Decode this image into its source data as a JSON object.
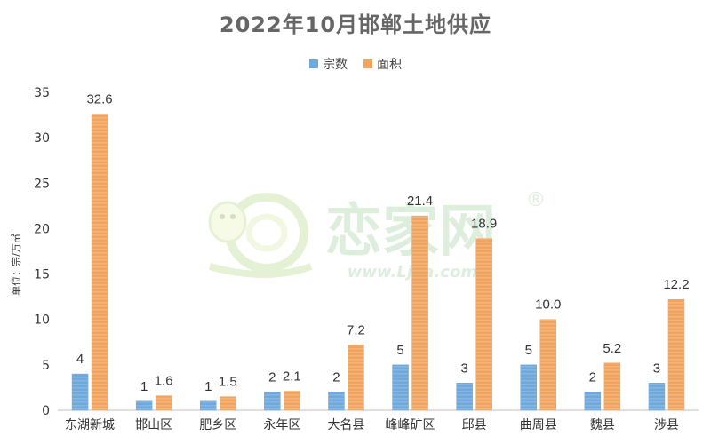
{
  "title": "2022年10月邯郸土地供应",
  "unit_label": "单位：宗/万㎡",
  "watermark": {
    "brand": "恋家网",
    "url": "www.Lj ja.com",
    "registered": "®"
  },
  "colors": {
    "series1": "#6fa8dc",
    "series2": "#f2a35e",
    "axis": "#bfbfbf"
  },
  "chart_data": {
    "type": "bar",
    "categories": [
      "东湖新城",
      "邯山区",
      "肥乡区",
      "永年区",
      "大名县",
      "峰峰矿区",
      "邱县",
      "曲周县",
      "魏县",
      "涉县"
    ],
    "series": [
      {
        "name": "宗数",
        "values": [
          4,
          1,
          1,
          2,
          2,
          5,
          3,
          5,
          2,
          3
        ],
        "labels": [
          "4",
          "1",
          "1",
          "2",
          "2",
          "5",
          "3",
          "5",
          "2",
          "3"
        ]
      },
      {
        "name": "面积",
        "values": [
          32.6,
          1.6,
          1.5,
          2.1,
          7.2,
          21.4,
          18.9,
          10.0,
          5.2,
          12.2
        ],
        "labels": [
          "32.6",
          "1.6",
          "1.5",
          "2.1",
          "7.2",
          "21.4",
          "18.9",
          "10.0",
          "5.2",
          "12.2"
        ]
      }
    ],
    "ylim": [
      0,
      35
    ],
    "yticks": [
      "0",
      "5",
      "10",
      "15",
      "20",
      "25",
      "30",
      "35"
    ],
    "grid": false,
    "legend_position": "top-center"
  }
}
